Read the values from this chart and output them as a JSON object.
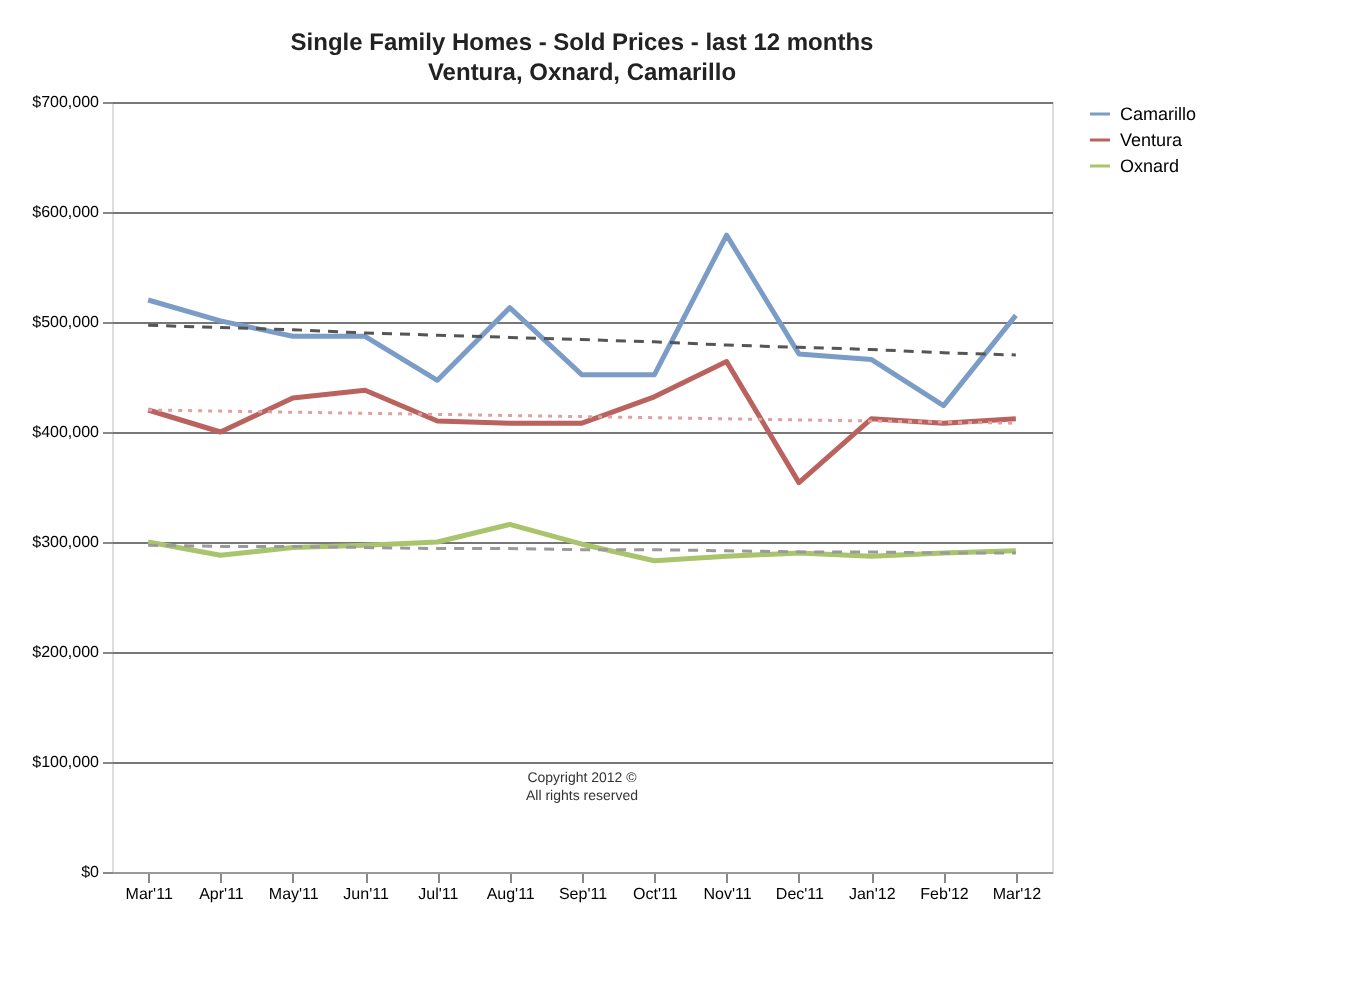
{
  "chart_data": {
    "type": "line",
    "title": "Single Family Homes - Sold Prices - last 12 months",
    "subtitle": "Ventura, Oxnard, Camarillo",
    "categories": [
      "Mar'11",
      "Apr'11",
      "May'11",
      "Jun'11",
      "Jul'11",
      "Aug'11",
      "Sep'11",
      "Oct'11",
      "Nov'11",
      "Dec'11",
      "Jan'12",
      "Feb'12",
      "Mar'12"
    ],
    "series": [
      {
        "name": "Camarillo",
        "color": "#7a9cc6",
        "values": [
          520000,
          501000,
          487000,
          487000,
          447000,
          513000,
          452000,
          452000,
          579000,
          471000,
          466000,
          424000,
          506000
        ]
      },
      {
        "name": "Ventura",
        "color": "#b9625e",
        "values": [
          420000,
          400000,
          431000,
          438000,
          410000,
          408000,
          408000,
          432000,
          464000,
          354000,
          412000,
          408000,
          412000
        ]
      },
      {
        "name": "Oxnard",
        "color": "#a9c46c",
        "values": [
          300000,
          288000,
          295000,
          297000,
          300000,
          316000,
          298000,
          283000,
          287000,
          290000,
          287000,
          290000,
          292000
        ]
      },
      {
        "color": "#555555",
        "line_style": "dashed",
        "values": [
          497000,
          495000,
          493000,
          490000,
          488000,
          486000,
          484000,
          482000,
          479000,
          477000,
          475000,
          472000,
          470000
        ]
      },
      {
        "color": "#e0a0a0",
        "line_style": "dotted",
        "values": [
          420000,
          419000,
          418000,
          417000,
          416000,
          415000,
          414000,
          413000,
          412000,
          411000,
          410000,
          409000,
          408000
        ]
      },
      {
        "color": "#9a9a9a",
        "line_style": "dashed",
        "values": [
          297000,
          296000,
          296000,
          295000,
          294000,
          294000,
          293000,
          293000,
          292000,
          291000,
          291000,
          290000,
          290000
        ]
      }
    ],
    "ylim": [
      0,
      700000
    ],
    "yticks": [
      {
        "value": 0,
        "label": "$0"
      },
      {
        "value": 100000,
        "label": "$100,000"
      },
      {
        "value": 200000,
        "label": "$200,000"
      },
      {
        "value": 300000,
        "label": "$300,000"
      },
      {
        "value": 400000,
        "label": "$400,000"
      },
      {
        "value": 500000,
        "label": "$500,000"
      },
      {
        "value": 600000,
        "label": "$600,000"
      },
      {
        "value": 700000,
        "label": "$700,000"
      }
    ],
    "grid": "y",
    "legend": "right",
    "marker": "none",
    "annotations": [
      "Copyright 2012 ©",
      "All rights reserved"
    ]
  }
}
